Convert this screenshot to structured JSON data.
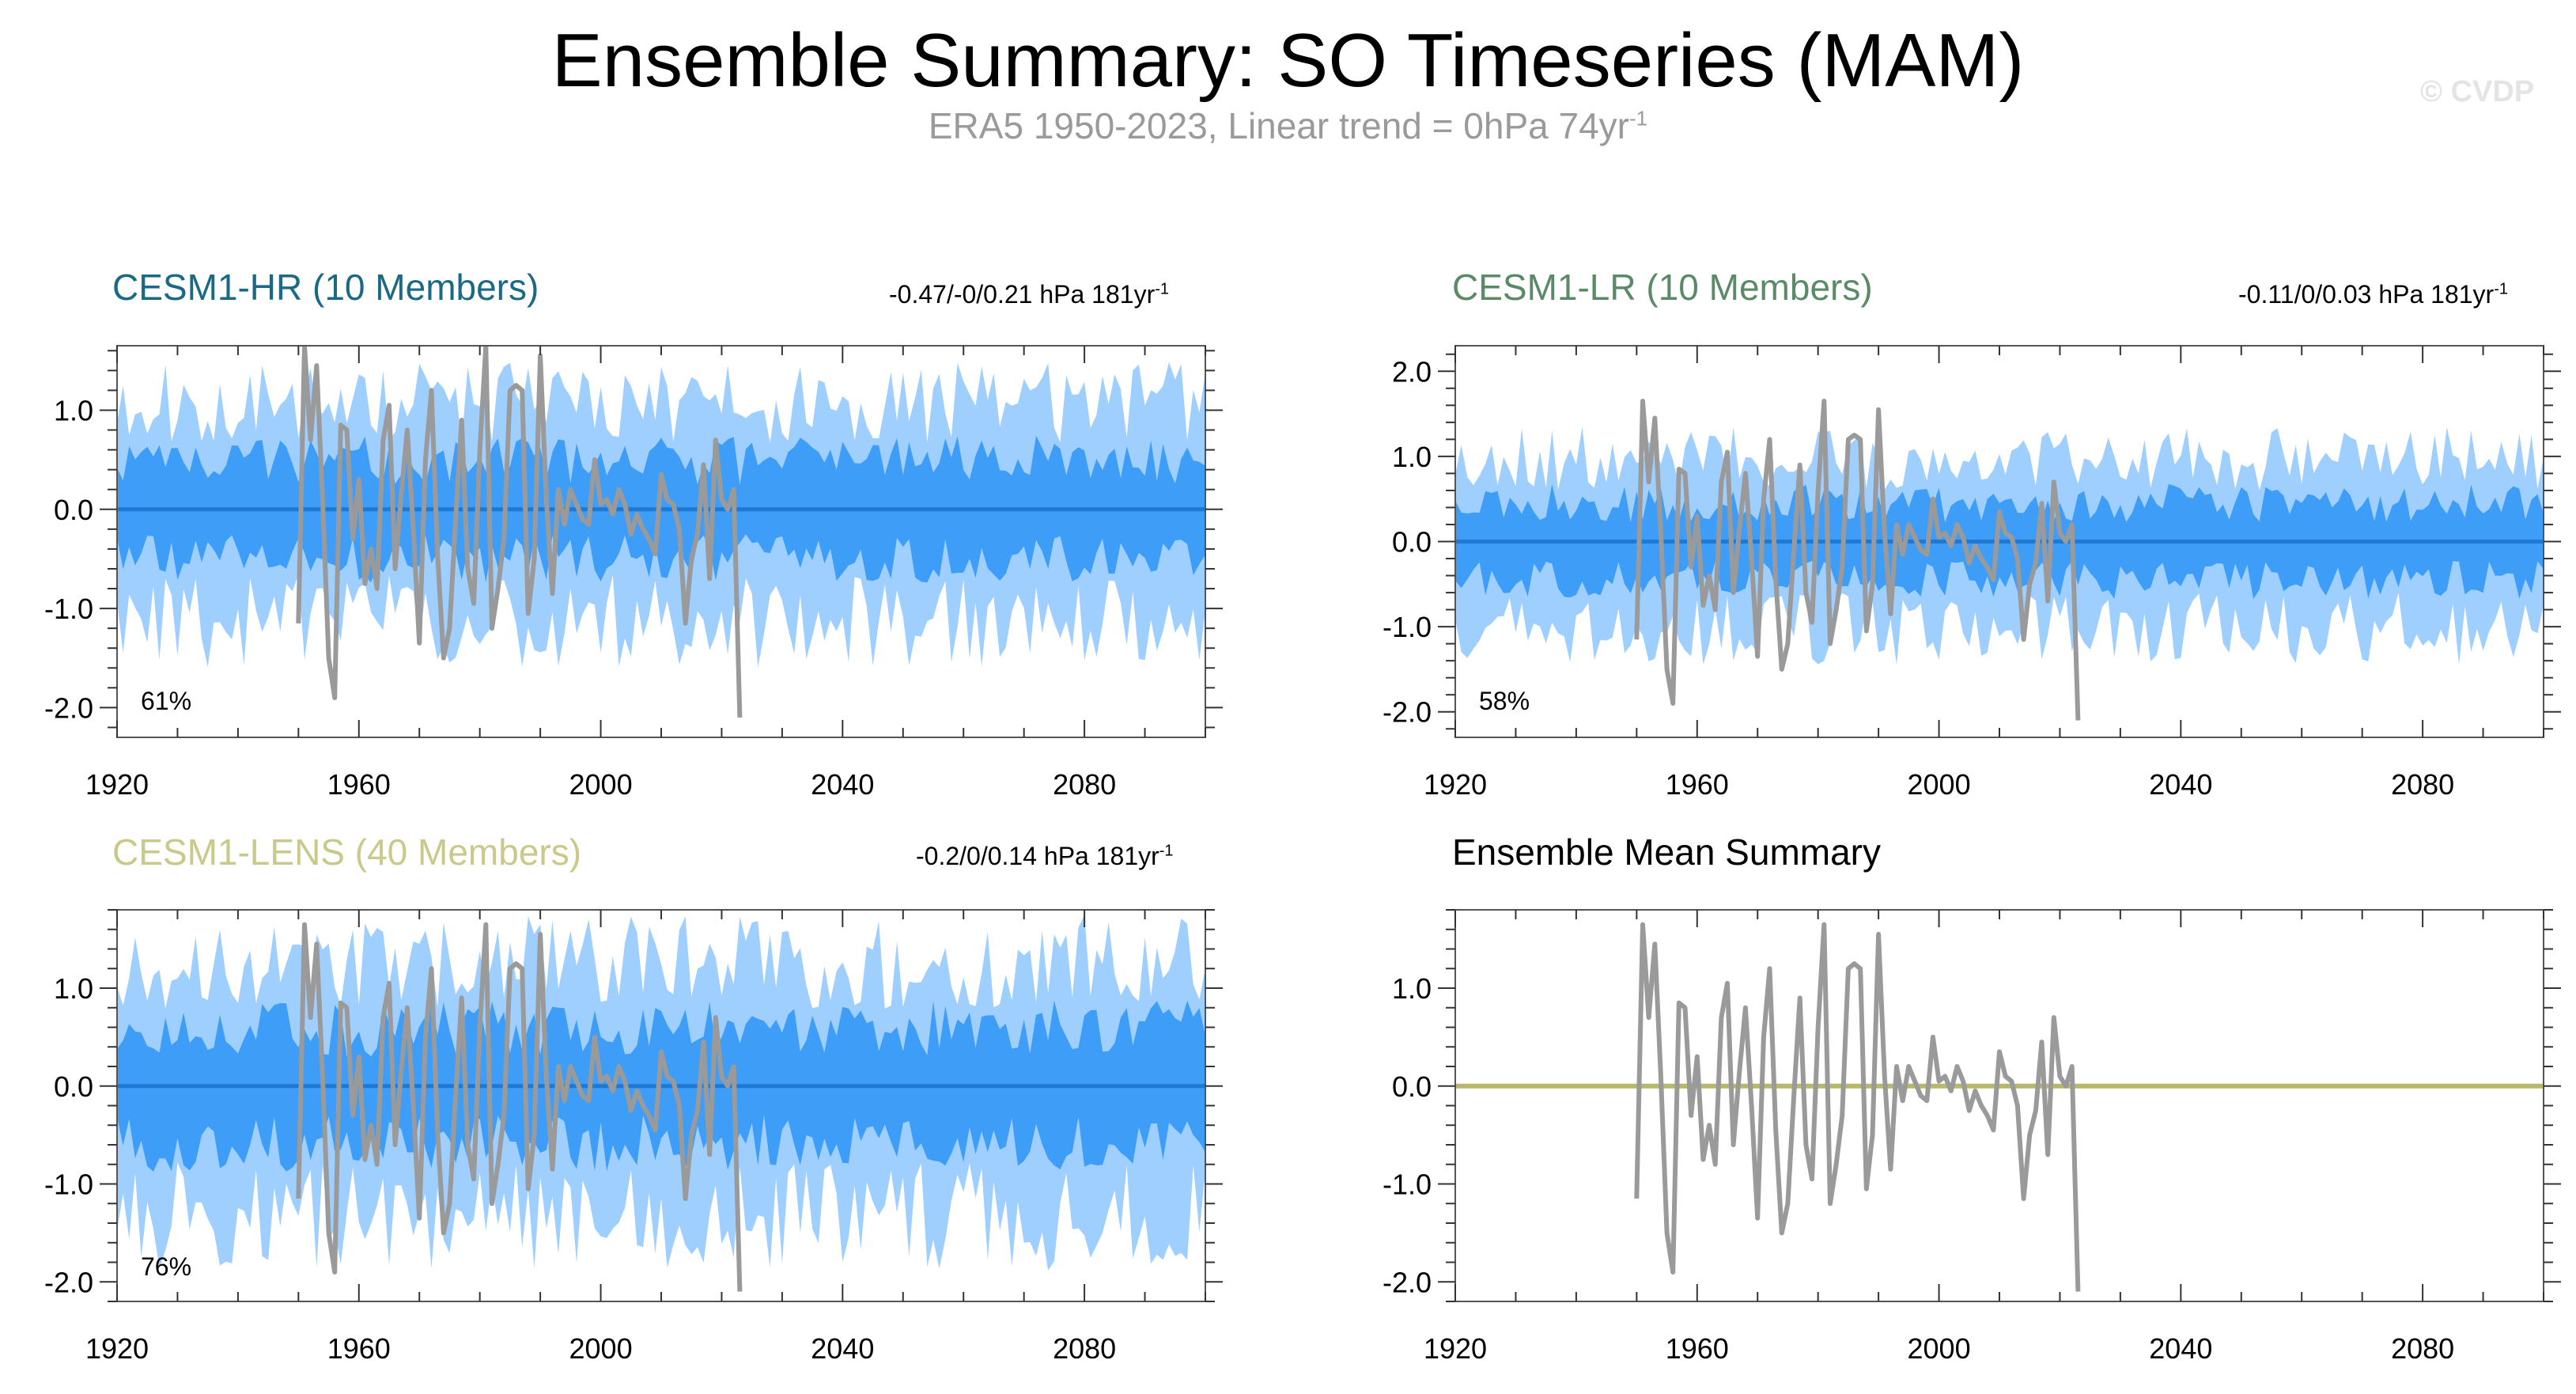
{
  "title": "Ensemble Summary: SO Timeseries (MAM)",
  "subtitle": {
    "text": "ERA5 1950-2023, Linear trend = 0hPa 74yr",
    "superscript": "-1"
  },
  "watermark": "© CVDP",
  "colors": {
    "outer_band": "#9fcfff",
    "inner_band": "#3d9df7",
    "mean_line": "#1f78d1",
    "obs_line": "#9a9a9a",
    "summary_mean_line": "#b8b86a",
    "hr_title": "#1a6a86",
    "lr_title": "#5a8a66",
    "lens_title": "#c9c98a",
    "summary_title": "#000000"
  },
  "chart_data": [
    {
      "type": "area",
      "panel": "CESM1-HR",
      "title": "CESM1-HR (10 Members)",
      "stat_text": "-0.47/-0/0.21 hPa 181yr",
      "stat_sup": "-1",
      "percent_label": "61%",
      "x_ticks": [
        "1920",
        "1960",
        "2000",
        "2040",
        "2080"
      ],
      "y_ticks": [
        "1.0",
        "0.0",
        "-1.0",
        "-2.0"
      ],
      "xlim": [
        1920,
        2100
      ],
      "ylim": [
        -2.3,
        1.65
      ],
      "band_outer": 1.1,
      "band_inner": 0.55,
      "seed": 11,
      "legend": "none"
    },
    {
      "type": "area",
      "panel": "CESM1-LR",
      "title": "CESM1-LR (10 Members)",
      "stat_text": "-0.11/0/0.03 hPa 181yr",
      "stat_sup": "-1",
      "percent_label": "58%",
      "x_ticks": [
        "1920",
        "1960",
        "2000",
        "2040",
        "2080"
      ],
      "y_ticks": [
        "2.0",
        "1.0",
        "0.0",
        "-1.0",
        "-2.0"
      ],
      "xlim": [
        1920,
        2100
      ],
      "ylim": [
        -2.3,
        2.3
      ],
      "band_outer": 1.0,
      "band_inner": 0.5,
      "seed": 23,
      "legend": "none"
    },
    {
      "type": "area",
      "panel": "CESM1-LENS",
      "title": "CESM1-LENS (40 Members)",
      "stat_text": "-0.2/0/0.14 hPa 181yr",
      "stat_sup": "-1",
      "percent_label": "76%",
      "x_ticks": [
        "1920",
        "1960",
        "2000",
        "2040",
        "2080"
      ],
      "y_ticks": [
        "1.0",
        "0.0",
        "-1.0",
        "-2.0"
      ],
      "xlim": [
        1920,
        2100
      ],
      "ylim": [
        -2.2,
        1.8
      ],
      "band_outer": 1.3,
      "band_inner": 0.65,
      "seed": 37,
      "legend": "none"
    },
    {
      "type": "line",
      "panel": "Ensemble Mean Summary",
      "title": "Ensemble Mean Summary",
      "x_ticks": [
        "1920",
        "1960",
        "2000",
        "2040",
        "2080"
      ],
      "y_ticks": [
        "1.0",
        "0.0",
        "-1.0",
        "-2.0"
      ],
      "xlim": [
        1920,
        2100
      ],
      "ylim": [
        -2.2,
        1.8
      ],
      "legend": "none"
    }
  ],
  "observations": {
    "name": "ERA5",
    "x_start": 1950,
    "values": [
      -1.15,
      1.65,
      0.7,
      1.45,
      0.1,
      -1.5,
      -1.9,
      0.85,
      0.8,
      -0.3,
      0.3,
      -0.75,
      -0.4,
      -0.8,
      0.7,
      1.05,
      -0.6,
      0.15,
      0.8,
      -0.2,
      -1.35,
      0.5,
      1.2,
      -0.45,
      -1.5,
      -1.2,
      -0.1,
      0.9,
      -0.6,
      -0.95,
      0.6,
      1.65,
      -1.2,
      -0.8,
      -0.3,
      1.2,
      1.25,
      1.2,
      -1.05,
      -0.5,
      1.55,
      0.1,
      -0.85,
      0.2,
      -0.15,
      0.2,
      0.05,
      -0.1,
      -0.15,
      0.5,
      0.05,
      0.1,
      -0.05,
      0.2,
      0.05,
      -0.25,
      -0.05,
      -0.2,
      -0.3,
      -0.45,
      0.35,
      0.1,
      0.05,
      -0.2,
      -1.15,
      -0.5,
      -0.25,
      0.45,
      -0.7,
      0.7,
      0.1,
      0.0,
      0.2,
      -2.1
    ]
  }
}
